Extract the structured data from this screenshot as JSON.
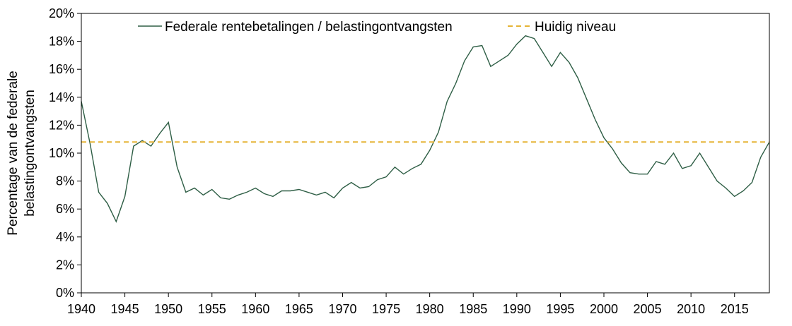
{
  "chart_data": {
    "type": "line",
    "title": "",
    "xlabel": "",
    "ylabel_lines": [
      "Percentage van de federale",
      "belastingontvangsten"
    ],
    "xlim": [
      1940,
      2019
    ],
    "ylim": [
      0,
      0.2
    ],
    "xticks": [
      1940,
      1945,
      1950,
      1955,
      1960,
      1965,
      1970,
      1975,
      1980,
      1985,
      1990,
      1995,
      2000,
      2005,
      2010,
      2015
    ],
    "xtick_labels": [
      "1940",
      "1945",
      "1950",
      "1955",
      "1960",
      "1965",
      "1970",
      "1975",
      "1980",
      "1985",
      "1990",
      "1995",
      "2000",
      "2005",
      "2010",
      "2015"
    ],
    "yticks": [
      0,
      0.02,
      0.04,
      0.06,
      0.08,
      0.1,
      0.12,
      0.14,
      0.16,
      0.18,
      0.2
    ],
    "ytick_labels": [
      "0%",
      "2%",
      "4%",
      "6%",
      "8%",
      "10%",
      "12%",
      "14%",
      "16%",
      "18%",
      "20%"
    ],
    "grid": false,
    "legend_position": "top",
    "series": [
      {
        "name": "Federale rentebetalingen / belastingontvangsten",
        "color": "#2e5e45",
        "style": "solid",
        "x": [
          1940,
          1941,
          1942,
          1943,
          1944,
          1945,
          1946,
          1947,
          1948,
          1949,
          1950,
          1951,
          1952,
          1953,
          1954,
          1955,
          1956,
          1957,
          1958,
          1959,
          1960,
          1961,
          1962,
          1963,
          1964,
          1965,
          1966,
          1967,
          1968,
          1969,
          1970,
          1971,
          1972,
          1973,
          1974,
          1975,
          1976,
          1977,
          1978,
          1979,
          1980,
          1981,
          1982,
          1983,
          1984,
          1985,
          1986,
          1987,
          1988,
          1989,
          1990,
          1991,
          1992,
          1993,
          1994,
          1995,
          1996,
          1997,
          1998,
          1999,
          2000,
          2001,
          2002,
          2003,
          2004,
          2005,
          2006,
          2007,
          2008,
          2009,
          2010,
          2011,
          2012,
          2013,
          2014,
          2015,
          2016,
          2017,
          2018,
          2019
        ],
        "values": [
          0.137,
          0.107,
          0.072,
          0.064,
          0.051,
          0.069,
          0.105,
          0.109,
          0.105,
          0.114,
          0.122,
          0.09,
          0.072,
          0.075,
          0.07,
          0.074,
          0.068,
          0.067,
          0.07,
          0.072,
          0.075,
          0.071,
          0.069,
          0.073,
          0.073,
          0.074,
          0.072,
          0.07,
          0.072,
          0.068,
          0.075,
          0.079,
          0.075,
          0.076,
          0.081,
          0.083,
          0.09,
          0.085,
          0.089,
          0.092,
          0.102,
          0.115,
          0.137,
          0.15,
          0.166,
          0.176,
          0.177,
          0.162,
          0.166,
          0.17,
          0.178,
          0.184,
          0.182,
          0.172,
          0.162,
          0.172,
          0.165,
          0.154,
          0.139,
          0.124,
          0.111,
          0.103,
          0.093,
          0.086,
          0.085,
          0.085,
          0.094,
          0.092,
          0.1,
          0.089,
          0.091,
          0.1,
          0.09,
          0.08,
          0.075,
          0.069,
          0.073,
          0.079,
          0.097,
          0.108
        ]
      },
      {
        "name": "Huidig niveau",
        "color": "#e5b436",
        "style": "dashed",
        "x": [
          1940,
          2019
        ],
        "values": [
          0.108,
          0.108
        ]
      }
    ]
  }
}
